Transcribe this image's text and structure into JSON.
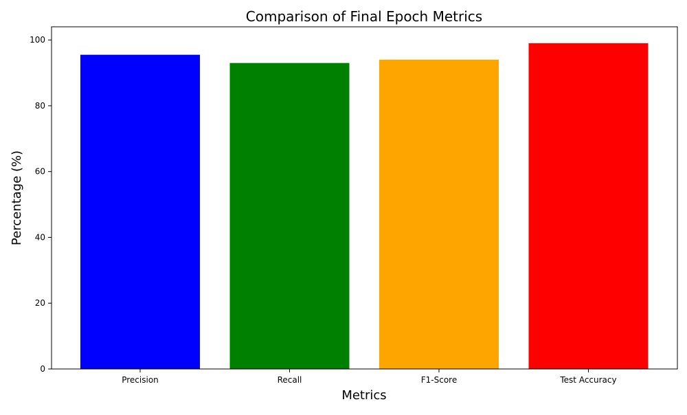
{
  "chart_data": {
    "type": "bar",
    "title": "Comparison of Final Epoch Metrics",
    "xlabel": "Metrics",
    "ylabel": "Percentage (%)",
    "categories": [
      "Precision",
      "Recall",
      "F1-Score",
      "Test Accuracy"
    ],
    "values": [
      95.5,
      93.0,
      94.0,
      99.0
    ],
    "colors": [
      "#0000ff",
      "#008000",
      "#ffa500",
      "#ff0000"
    ],
    "ylim": [
      0,
      104
    ],
    "yticks": [
      0,
      20,
      40,
      60,
      80,
      100
    ],
    "grid": false,
    "legend": "none"
  }
}
